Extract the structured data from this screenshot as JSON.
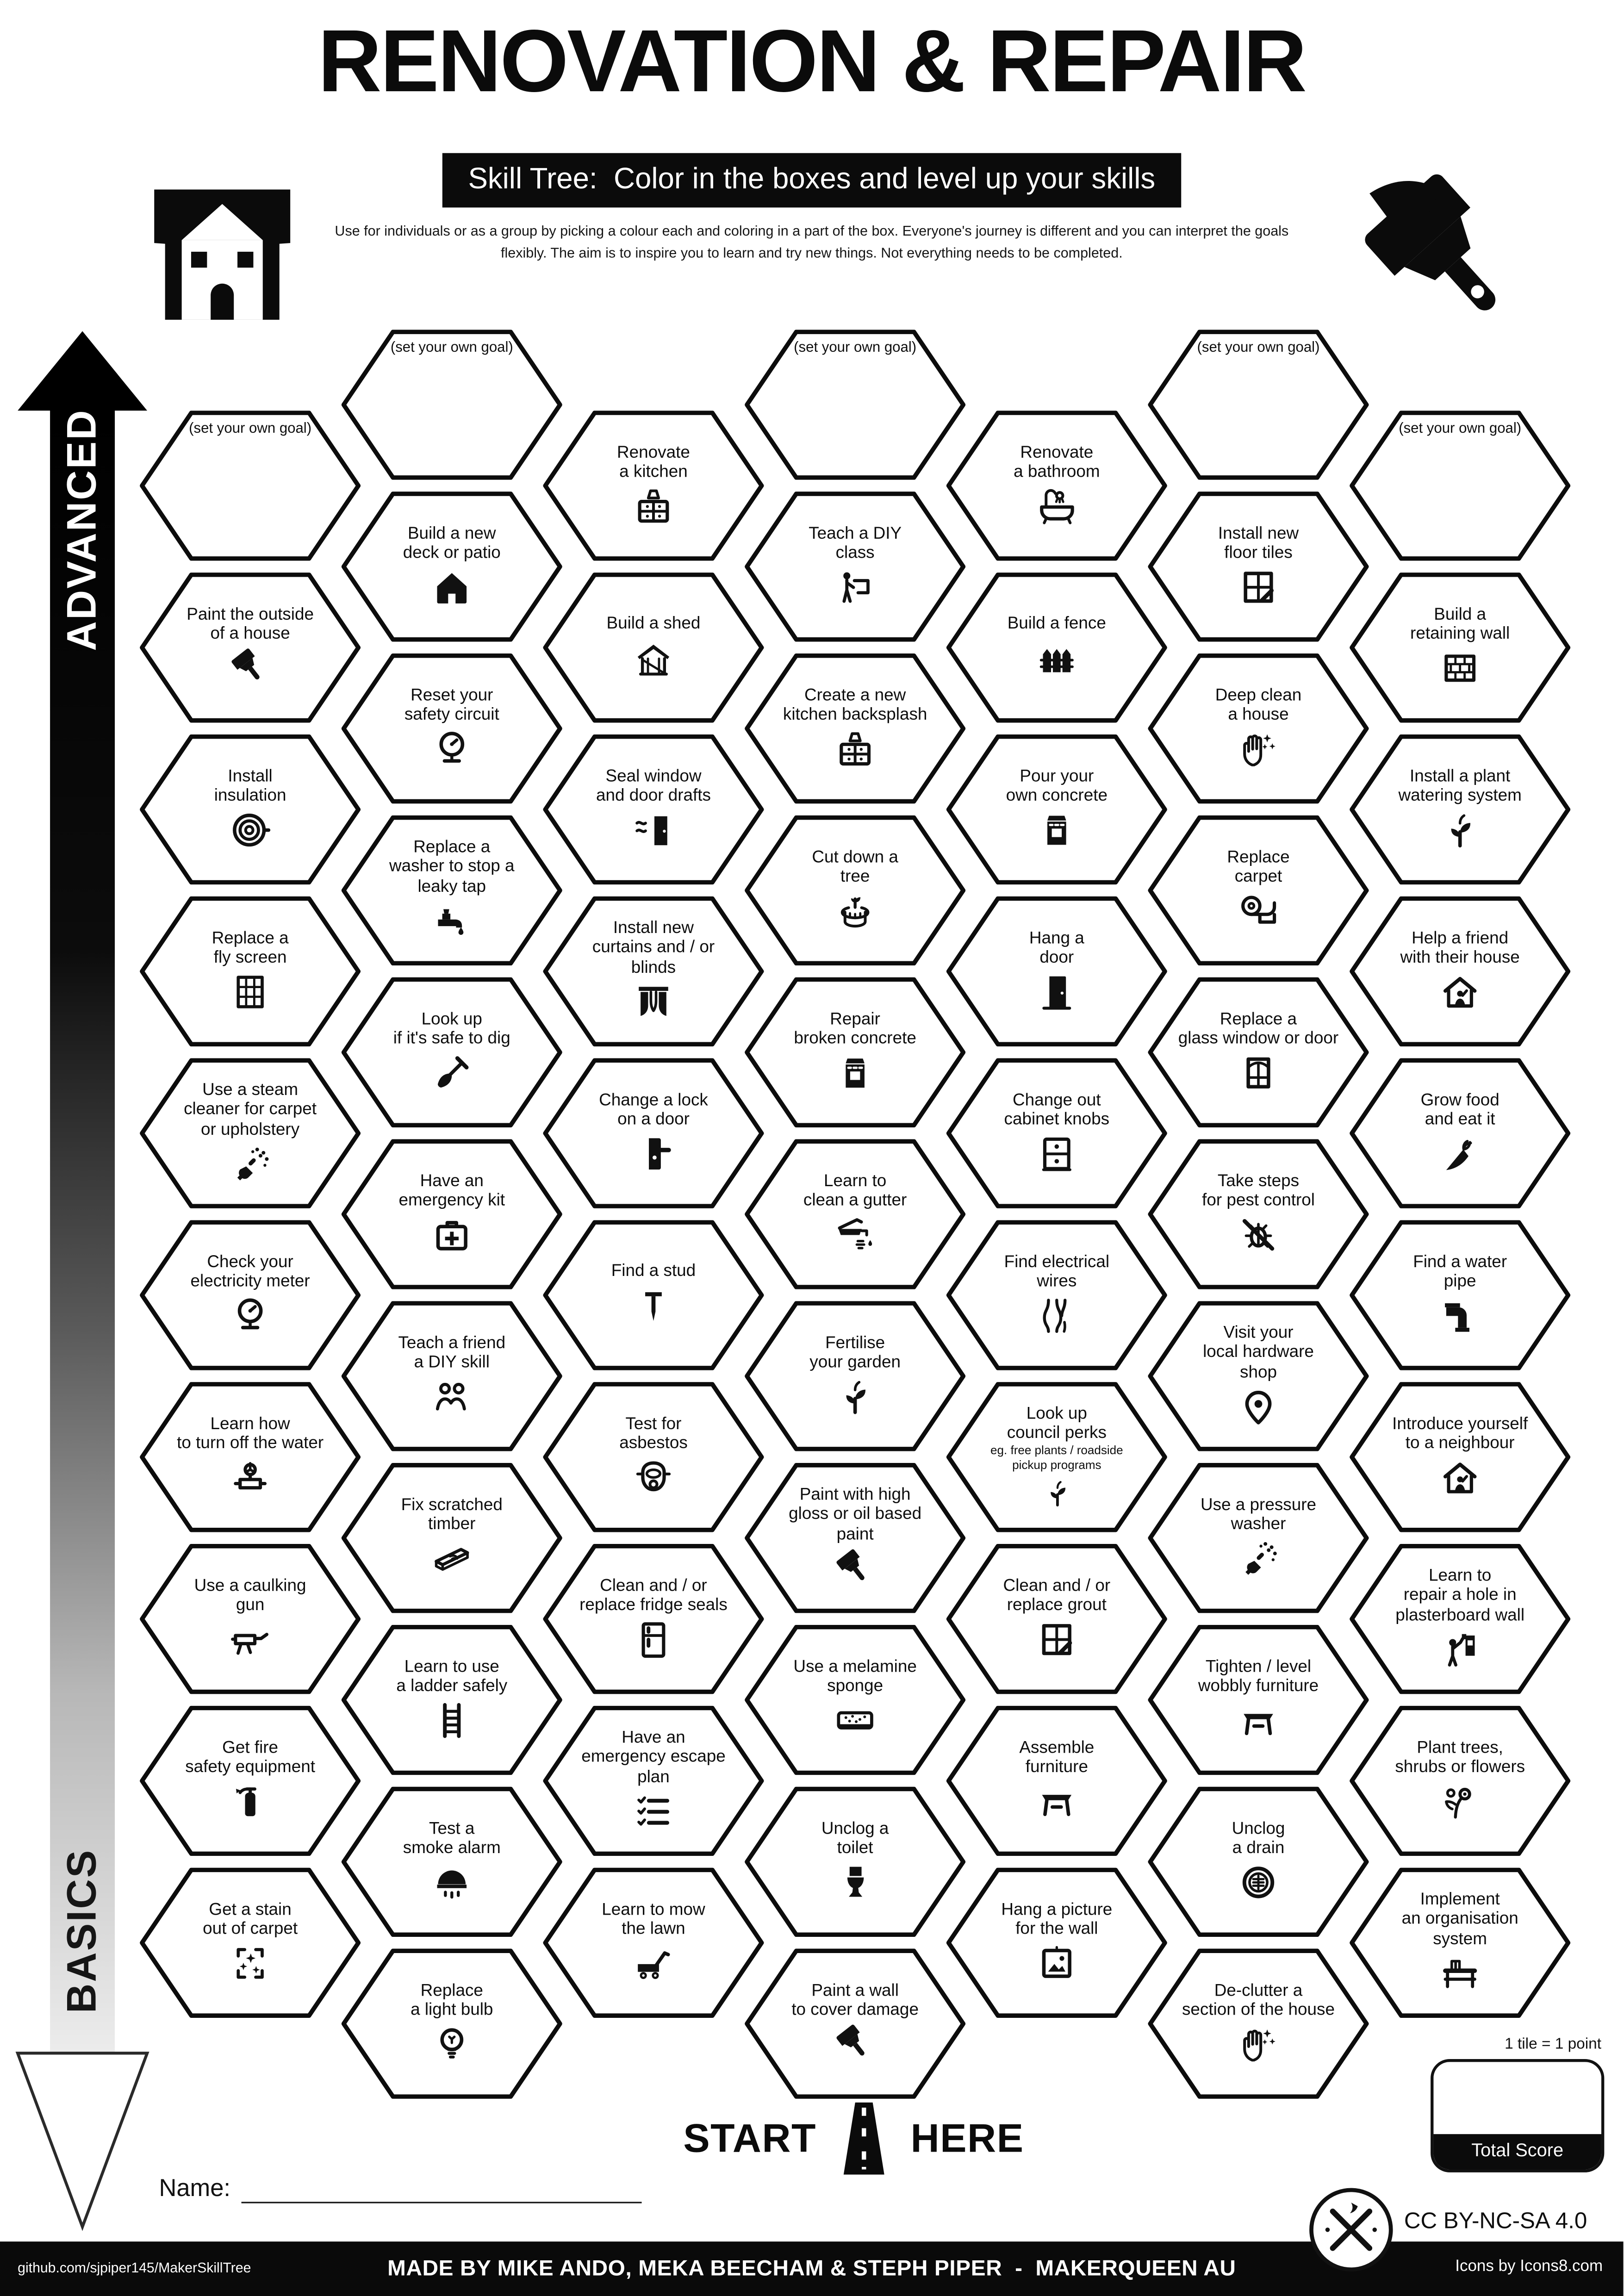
{
  "header": {
    "title": "RENOVATION & REPAIR",
    "subtitle": "Skill Tree:  Color in the boxes and level up your skills",
    "description": "Use for individuals or as a group by picking a colour each and coloring in a part of the box.  Everyone's journey is different and you can interpret the goals flexibly.  The aim is to inspire you to learn and try new things. Not everything needs to be completed.",
    "icons": {
      "left": "house-plaque-icon",
      "right": "big-brush-icon"
    }
  },
  "axis": {
    "top_label": "ADVANCED",
    "bottom_label": "BASICS"
  },
  "grid": {
    "columns": [
      {
        "tiles": [
          {
            "label": "(set your own goal)",
            "goal": true
          },
          {
            "label": "Paint the outside\nof a house",
            "icon": "paint-brush-icon"
          },
          {
            "label": "Install\ninsulation",
            "icon": "insulation-roll-icon"
          },
          {
            "label": "Replace a\nfly screen",
            "icon": "fly-screen-icon"
          },
          {
            "label": "Use a steam\ncleaner for carpet\nor upholstery",
            "icon": "steam-cleaner-icon"
          },
          {
            "label": "Check your\nelectricity meter",
            "icon": "electricity-meter-icon"
          },
          {
            "label": "Learn how\nto turn off the water",
            "icon": "water-valve-icon"
          },
          {
            "label": "Use a caulking\ngun",
            "icon": "caulking-gun-icon"
          },
          {
            "label": "Get fire\nsafety equipment",
            "icon": "fire-extinguisher-icon"
          },
          {
            "label": "Get a stain\nout of carpet",
            "icon": "stain-removal-icon"
          }
        ]
      },
      {
        "tiles": [
          {
            "label": "(set your own goal)",
            "goal": true
          },
          {
            "label": "Build a new\ndeck or patio",
            "icon": "deck-house-icon"
          },
          {
            "label": "Reset your\nsafety circuit",
            "icon": "safety-circuit-icon"
          },
          {
            "label": "Replace a\nwasher to stop a\nleaky tap",
            "icon": "leaky-tap-icon"
          },
          {
            "label": "Look up\nif it's safe to dig",
            "icon": "shovel-icon"
          },
          {
            "label": "Have an\nemergency kit",
            "icon": "first-aid-kit-icon"
          },
          {
            "label": "Teach a friend\na DIY skill",
            "icon": "two-people-icon"
          },
          {
            "label": "Fix scratched\ntimber",
            "icon": "timber-plank-icon"
          },
          {
            "label": "Learn to use\na ladder safely",
            "icon": "ladder-icon"
          },
          {
            "label": "Test a\nsmoke alarm",
            "icon": "smoke-alarm-icon"
          },
          {
            "label": "Replace\na light bulb",
            "icon": "light-bulb-icon"
          }
        ]
      },
      {
        "tiles": [
          {
            "label": "Renovate\na kitchen",
            "icon": "kitchen-cabinet-icon"
          },
          {
            "label": "Build a shed",
            "icon": "shed-icon"
          },
          {
            "label": "Seal window\nand door drafts",
            "icon": "door-draft-icon"
          },
          {
            "label": "Install new\ncurtains and / or\nblinds",
            "icon": "curtains-icon"
          },
          {
            "label": "Change a lock\non a door",
            "icon": "door-lock-icon"
          },
          {
            "label": "Find a stud",
            "icon": "nail-icon"
          },
          {
            "label": "Test for\nasbestos",
            "icon": "respirator-mask-icon"
          },
          {
            "label": "Clean and / or\nreplace fridge seals",
            "icon": "fridge-icon"
          },
          {
            "label": "Have an\nemergency escape\nplan",
            "icon": "checklist-icon"
          },
          {
            "label": "Learn to mow\nthe lawn",
            "icon": "lawn-mower-icon"
          }
        ]
      },
      {
        "tiles": [
          {
            "label": "(set your own goal)",
            "goal": true
          },
          {
            "label": "Teach a DIY\nclass",
            "icon": "diy-class-icon"
          },
          {
            "label": "Create a new\nkitchen backsplash",
            "icon": "backsplash-tiles-icon"
          },
          {
            "label": "Cut down a\ntree",
            "icon": "tree-stump-icon"
          },
          {
            "label": "Repair\nbroken concrete",
            "icon": "concrete-bag-icon"
          },
          {
            "label": "Learn to\nclean a gutter",
            "icon": "gutter-icon"
          },
          {
            "label": "Fertilise\nyour garden",
            "icon": "seedling-icon"
          },
          {
            "label": "Paint with high\ngloss or oil based\npaint",
            "icon": "paint-brush-icon"
          },
          {
            "label": "Use a melamine\nsponge",
            "icon": "sponge-icon"
          },
          {
            "label": "Unclog a\ntoilet",
            "icon": "toilet-icon"
          },
          {
            "label": "Paint a wall\nto cover damage",
            "icon": "paint-brush-icon"
          }
        ]
      },
      {
        "tiles": [
          {
            "label": "Renovate\na bathroom",
            "icon": "bathtub-icon"
          },
          {
            "label": "Build a fence",
            "icon": "fence-icon"
          },
          {
            "label": "Pour your\nown concrete",
            "icon": "concrete-bag-icon"
          },
          {
            "label": "Hang a\ndoor",
            "icon": "door-icon"
          },
          {
            "label": "Change out\ncabinet knobs",
            "icon": "cabinet-knobs-icon"
          },
          {
            "label": "Find electrical\nwires",
            "icon": "electrical-wires-icon"
          },
          {
            "label": "Look up\ncouncil perks",
            "sub": "eg. free plants / roadside\npickup programs",
            "icon": "council-plant-icon"
          },
          {
            "label": "Clean and / or\nreplace grout",
            "icon": "grout-tiles-icon"
          },
          {
            "label": "Assemble\nfurniture",
            "icon": "furniture-table-icon"
          },
          {
            "label": "Hang a picture\nfor the wall",
            "icon": "picture-frame-icon"
          }
        ]
      },
      {
        "tiles": [
          {
            "label": "(set your own goal)",
            "goal": true
          },
          {
            "label": "Install new\nfloor tiles",
            "icon": "floor-tiles-icon"
          },
          {
            "label": "Deep clean\na house",
            "icon": "clean-hands-icon"
          },
          {
            "label": "Replace\ncarpet",
            "icon": "carpet-roll-icon"
          },
          {
            "label": "Replace a\nglass window or door",
            "icon": "glass-window-icon"
          },
          {
            "label": "Take steps\nfor pest control",
            "icon": "pest-control-icon"
          },
          {
            "label": "Visit your\nlocal hardware\nshop",
            "icon": "location-pin-icon"
          },
          {
            "label": "Use a pressure\nwasher",
            "icon": "pressure-washer-icon"
          },
          {
            "label": "Tighten / level\nwobbly furniture",
            "icon": "wobbly-table-icon"
          },
          {
            "label": "Unclog\na drain",
            "icon": "drain-icon"
          },
          {
            "label": "De-clutter a\nsection of the house",
            "icon": "declutter-hands-icon"
          }
        ]
      },
      {
        "tiles": [
          {
            "label": "(set your own goal)",
            "goal": true
          },
          {
            "label": "Build a\nretaining wall",
            "icon": "brick-wall-icon"
          },
          {
            "label": "Install a plant\nwatering system",
            "icon": "plant-watering-icon"
          },
          {
            "label": "Help a friend\nwith their house",
            "icon": "helping-house-icon"
          },
          {
            "label": "Grow food\nand eat it",
            "icon": "carrot-icon"
          },
          {
            "label": "Find a water\npipe",
            "icon": "water-pipe-icon"
          },
          {
            "label": "Introduce yourself\nto a neighbour",
            "icon": "neighbour-house-icon"
          },
          {
            "label": "Learn to\nrepair a hole in\nplasterboard wall",
            "icon": "wall-repair-icon"
          },
          {
            "label": "Plant trees,\nshrubs or flowers",
            "icon": "flowers-icon"
          },
          {
            "label": "Implement\nan organisation\nsystem",
            "icon": "organisation-shelf-icon"
          }
        ]
      }
    ]
  },
  "bottom": {
    "start_left": "START",
    "start_right": "HERE",
    "start_icon": "road-icon",
    "name_label": "Name:",
    "tile_point_note": "1 tile = 1 point",
    "total_score_label": "Total Score",
    "license": "CC BY-NC-SA 4.0",
    "license_icon": "maker-tools-badge-icon"
  },
  "footer_bar": {
    "left": "github.com/sjpiper145/MakerSkillTree",
    "center": "MADE BY MIKE ANDO, MEKA BEECHAM & STEPH PIPER  -  MAKERQUEEN AU",
    "right": "Icons by Icons8.com"
  },
  "colors": {
    "ink": "#0b0b0b",
    "paper": "#ffffff"
  }
}
